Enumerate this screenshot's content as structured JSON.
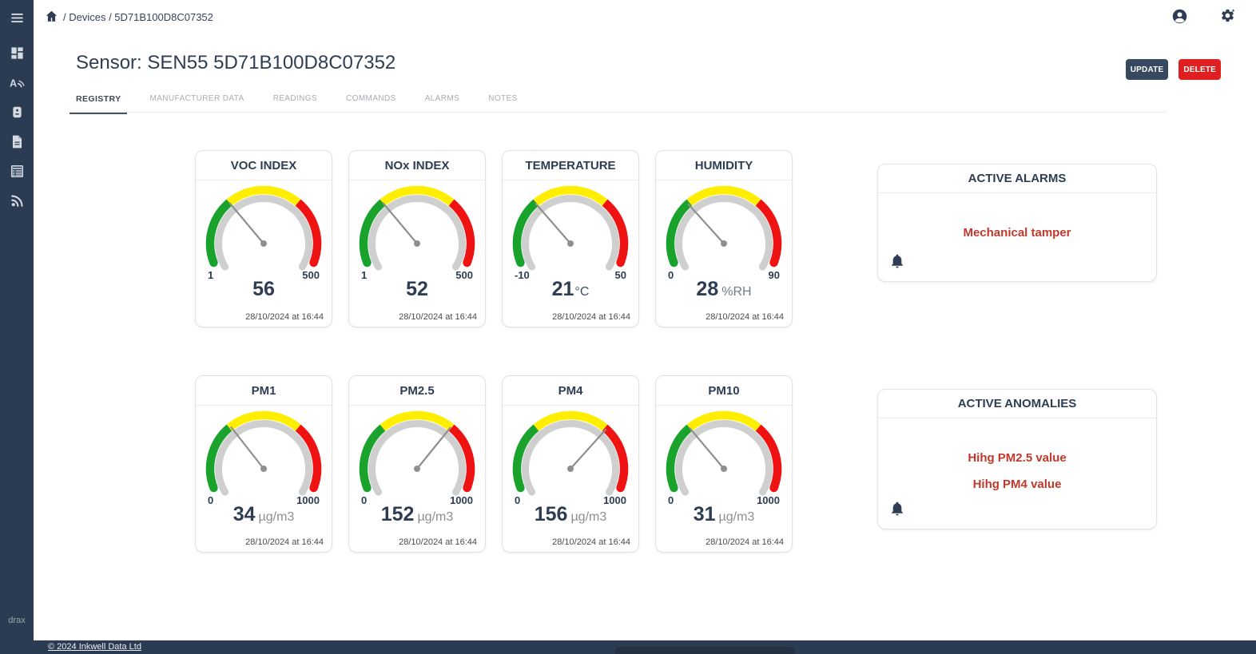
{
  "colors": {
    "navy": "#2b3c52",
    "text_navy": "#2e3d54",
    "update_btn": "#36495e",
    "delete_btn": "#e02020",
    "alarm_text": "#c0392b",
    "gauge_green": "#1aa32c",
    "gauge_yellow": "#ffee00",
    "gauge_red": "#ef1212",
    "gauge_track": "#cfcfcf",
    "gauge_needle": "#8f8f8f"
  },
  "sidebar": {
    "menu_icon": "menu-icon",
    "items": [
      {
        "icon": "dashboard-icon"
      },
      {
        "icon": "antenna-icon"
      },
      {
        "icon": "device-icon"
      },
      {
        "icon": "document-icon"
      },
      {
        "icon": "table-icon"
      },
      {
        "icon": "rss-icon"
      }
    ],
    "brand": "drax"
  },
  "topbar": {
    "breadcrumb": "/ Devices / 5D71B100D8C07352"
  },
  "header": {
    "title": "Sensor: SEN55 5D71B100D8C07352",
    "update_label": "UPDATE",
    "delete_label": "DELETE"
  },
  "tabs": [
    {
      "label": "REGISTRY",
      "active": true
    },
    {
      "label": "MANUFACTURER DATA",
      "active": false
    },
    {
      "label": "READINGS",
      "active": false
    },
    {
      "label": "COMMANDS",
      "active": false
    },
    {
      "label": "ALARMS",
      "active": false
    },
    {
      "label": "NOTES",
      "active": false
    }
  ],
  "gauges": [
    {
      "label": "VOC INDEX",
      "min": "1",
      "max": "500",
      "value": "56",
      "unit": "",
      "needle_deg": -40,
      "timestamp": "28/10/2024 at 16:44"
    },
    {
      "label": "NOx INDEX",
      "min": "1",
      "max": "500",
      "value": "52",
      "unit": "",
      "needle_deg": -40,
      "timestamp": "28/10/2024 at 16:44"
    },
    {
      "label": "TEMPERATURE",
      "min": "-10",
      "max": "50",
      "value": "21",
      "unit": "°C",
      "needle_deg": -41,
      "timestamp": "28/10/2024 at 16:44"
    },
    {
      "label": "HUMIDITY",
      "min": "0",
      "max": "90",
      "value": "28",
      "unit": "%RH",
      "needle_deg": -42,
      "timestamp": "28/10/2024 at 16:44"
    },
    {
      "label": "PM1",
      "min": "0",
      "max": "1000",
      "value": "34",
      "unit": "µg/m3",
      "needle_deg": -38,
      "timestamp": "28/10/2024 at 16:44"
    },
    {
      "label": "PM2.5",
      "min": "0",
      "max": "1000",
      "value": "152",
      "unit": "µg/m3",
      "needle_deg": 39,
      "timestamp": "28/10/2024 at 16:44"
    },
    {
      "label": "PM4",
      "min": "0",
      "max": "1000",
      "value": "156",
      "unit": "µg/m3",
      "needle_deg": 42,
      "timestamp": "28/10/2024 at 16:44"
    },
    {
      "label": "PM10",
      "min": "0",
      "max": "1000",
      "value": "31",
      "unit": "µg/m3",
      "needle_deg": -40,
      "timestamp": "28/10/2024 at 16:44"
    }
  ],
  "alarm_cards": [
    {
      "title": "ACTIVE ALARMS",
      "items": [
        "Mechanical tamper"
      ],
      "kind": "alarms"
    },
    {
      "title": "ACTIVE ANOMALIES",
      "items": [
        "Hihg PM2.5 value",
        "Hihg PM4 value"
      ],
      "kind": "anomalies"
    }
  ],
  "footer": {
    "copyright": "© 2024 Inkwell Data Ltd"
  }
}
